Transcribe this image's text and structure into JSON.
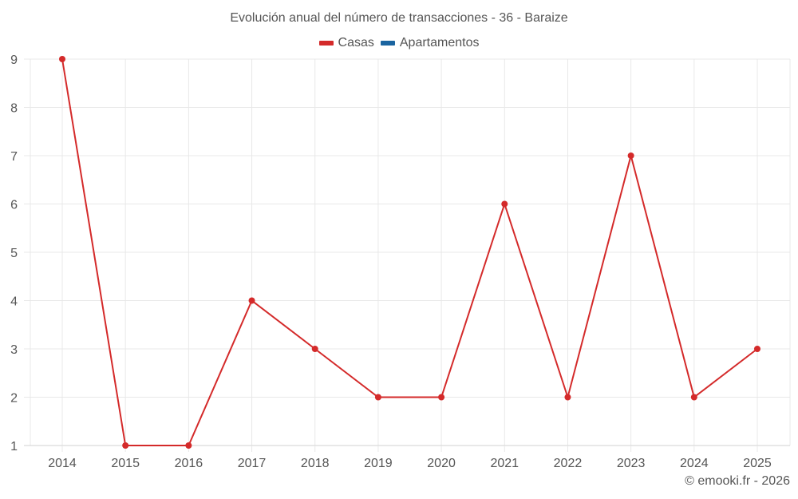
{
  "title": "Evolución anual del número de transacciones - 36 - Baraize",
  "legend": [
    {
      "label": "Casas",
      "color": "#d42a2a"
    },
    {
      "label": "Apartamentos",
      "color": "#1a64a0"
    }
  ],
  "credit": "© emooki.fr - 2026",
  "colors": {
    "casas": "#d42a2a",
    "apartamentos": "#1a64a0",
    "grid": "#e8e8e8",
    "axis": "#d0d0d0",
    "text": "#555555"
  },
  "chart_data": {
    "type": "line",
    "title": "Evolución anual del número de transacciones - 36 - Baraize",
    "xlabel": "",
    "ylabel": "",
    "categories": [
      "2014",
      "2015",
      "2016",
      "2017",
      "2018",
      "2019",
      "2020",
      "2021",
      "2022",
      "2023",
      "2024",
      "2025"
    ],
    "series": [
      {
        "name": "Casas",
        "color": "#d42a2a",
        "values": [
          9,
          1,
          1,
          4,
          3,
          2,
          2,
          6,
          2,
          7,
          2,
          3
        ]
      },
      {
        "name": "Apartamentos",
        "color": "#1a64a0",
        "values": []
      }
    ],
    "yticks": [
      1,
      2,
      3,
      4,
      5,
      6,
      7,
      8,
      9
    ],
    "ylim": [
      1,
      9
    ],
    "grid": true,
    "legend_position": "top"
  }
}
